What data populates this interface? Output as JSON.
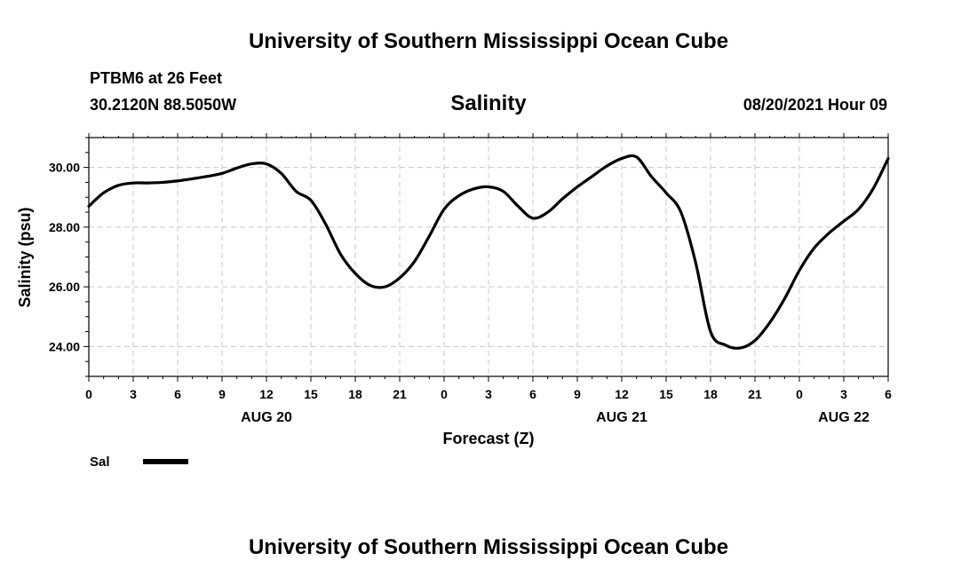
{
  "header": {
    "title": "University of Southern Mississippi Ocean Cube",
    "station": "PTBM6 at 26 Feet",
    "coords": "30.2120N  88.5050W",
    "datetime": "08/20/2021 Hour 09"
  },
  "footer": {
    "title": "University of Southern Mississippi Ocean Cube"
  },
  "chart_data": {
    "type": "line",
    "title": "Salinity",
    "xlabel": "Forecast (Z)",
    "ylabel": "Salinity (psu)",
    "xlim": [
      0,
      54
    ],
    "ylim": [
      23,
      31
    ],
    "grid": true,
    "legend_position": "bottom-left",
    "x_ticks": [
      "0",
      "3",
      "6",
      "9",
      "12",
      "15",
      "18",
      "21",
      "0",
      "3",
      "6",
      "9",
      "12",
      "15",
      "18",
      "21",
      "0",
      "3",
      "6"
    ],
    "y_ticks": [
      "24.00",
      "26.00",
      "28.00",
      "30.00"
    ],
    "date_labels": [
      {
        "label": "AUG 20",
        "x": 12
      },
      {
        "label": "AUG 21",
        "x": 36
      },
      {
        "label": "AUG 22",
        "x": 51
      }
    ],
    "series": [
      {
        "name": "Sal",
        "color": "#000000",
        "x": [
          0,
          1,
          2,
          3,
          4,
          5,
          6,
          7,
          8,
          9,
          10,
          11,
          12,
          13,
          14,
          15,
          16,
          17,
          18,
          19,
          20,
          21,
          22,
          23,
          24,
          25,
          26,
          27,
          28,
          29,
          30,
          31,
          32,
          33,
          34,
          35,
          36,
          37,
          38,
          39,
          40,
          41,
          42,
          43,
          44,
          45,
          46,
          47,
          48,
          49,
          50,
          51,
          52,
          53,
          54
        ],
        "y": [
          28.7,
          29.15,
          29.4,
          29.48,
          29.48,
          29.5,
          29.55,
          29.62,
          29.7,
          29.8,
          29.98,
          30.12,
          30.12,
          29.8,
          29.2,
          28.9,
          28.1,
          27.1,
          26.45,
          26.05,
          26.0,
          26.3,
          26.85,
          27.7,
          28.6,
          29.05,
          29.28,
          29.35,
          29.2,
          28.7,
          28.3,
          28.5,
          28.95,
          29.35,
          29.7,
          30.05,
          30.3,
          30.35,
          29.7,
          29.15,
          28.5,
          26.8,
          24.5,
          24.05,
          23.95,
          24.2,
          24.8,
          25.6,
          26.55,
          27.3,
          27.8,
          28.2,
          28.6,
          29.3,
          30.3
        ]
      }
    ]
  }
}
